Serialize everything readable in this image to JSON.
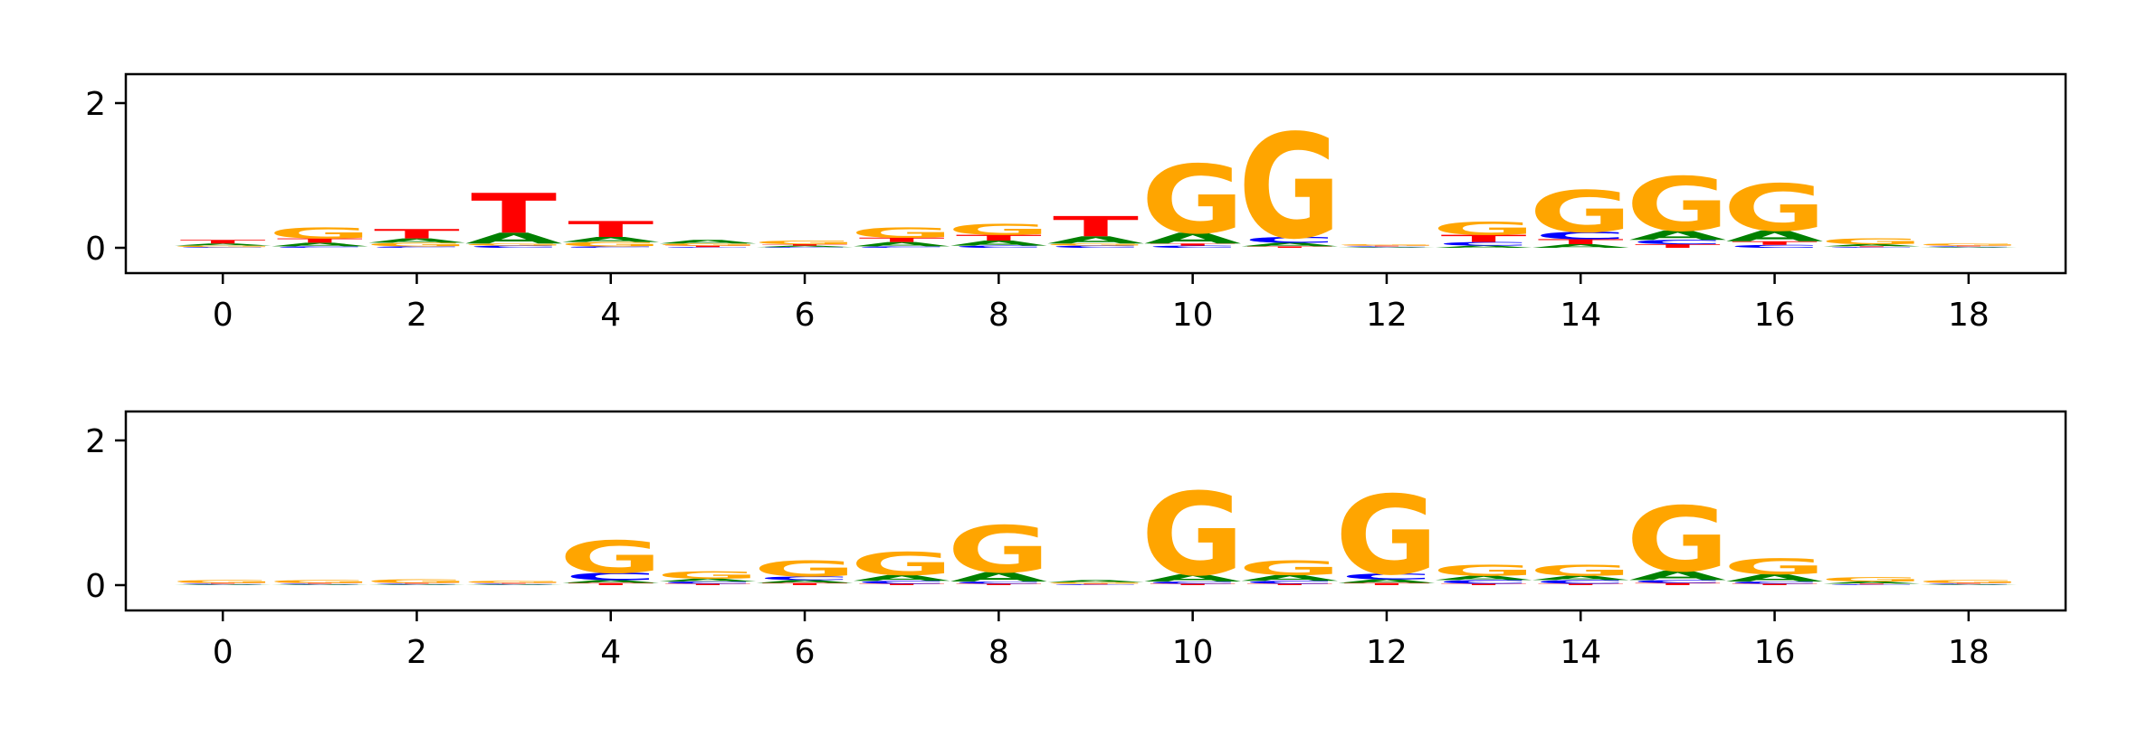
{
  "colors": {
    "A": "#008000",
    "C": "#0000ff",
    "G": "#ffa500",
    "T": "#ff0000",
    "axis": "#000000"
  },
  "chart_data": [
    {
      "type": "sequence-logo",
      "xlim": [
        -1,
        19
      ],
      "ylim": [
        -0.35,
        2.4
      ],
      "xticks": [
        0,
        2,
        4,
        6,
        8,
        10,
        12,
        14,
        16,
        18
      ],
      "yticks": [
        0,
        2
      ],
      "positions": [
        {
          "pos": 0,
          "A": 0.03,
          "C": 0.01,
          "G": 0.02,
          "T": 0.05
        },
        {
          "pos": 1,
          "A": 0.05,
          "C": 0.02,
          "G": 0.15,
          "T": 0.06
        },
        {
          "pos": 2,
          "A": 0.06,
          "C": 0.02,
          "G": 0.05,
          "T": 0.13
        },
        {
          "pos": 3,
          "A": 0.15,
          "C": 0.03,
          "G": 0.03,
          "T": 0.55
        },
        {
          "pos": 4,
          "A": 0.07,
          "C": 0.02,
          "G": 0.06,
          "T": 0.22
        },
        {
          "pos": 5,
          "A": 0.05,
          "C": 0.01,
          "G": 0.03,
          "T": 0.02
        },
        {
          "pos": 6,
          "A": 0.02,
          "C": 0.01,
          "G": 0.05,
          "T": 0.02
        },
        {
          "pos": 7,
          "A": 0.06,
          "C": 0.02,
          "G": 0.14,
          "T": 0.06
        },
        {
          "pos": 8,
          "A": 0.07,
          "C": 0.03,
          "G": 0.15,
          "T": 0.08
        },
        {
          "pos": 9,
          "A": 0.1,
          "C": 0.03,
          "G": 0.03,
          "T": 0.28
        },
        {
          "pos": 10,
          "A": 0.15,
          "C": 0.03,
          "G": 0.95,
          "T": 0.03
        },
        {
          "pos": 11,
          "A": 0.05,
          "C": 0.08,
          "G": 1.45,
          "T": 0.02
        },
        {
          "pos": 12,
          "A": 0.01,
          "C": 0.01,
          "G": 0.02,
          "T": 0.01
        },
        {
          "pos": 13,
          "A": 0.03,
          "C": 0.05,
          "G": 0.18,
          "T": 0.1
        },
        {
          "pos": 14,
          "A": 0.05,
          "C": 0.1,
          "G": 0.58,
          "T": 0.07
        },
        {
          "pos": 15,
          "A": 0.13,
          "C": 0.06,
          "G": 0.75,
          "T": 0.05
        },
        {
          "pos": 16,
          "A": 0.15,
          "C": 0.04,
          "G": 0.65,
          "T": 0.05
        },
        {
          "pos": 17,
          "A": 0.03,
          "C": 0.01,
          "G": 0.08,
          "T": 0.01
        },
        {
          "pos": 18,
          "A": 0.01,
          "C": 0.01,
          "G": 0.03,
          "T": 0.01
        }
      ]
    },
    {
      "type": "sequence-logo",
      "xlim": [
        -1,
        19
      ],
      "ylim": [
        -0.35,
        2.4
      ],
      "xticks": [
        0,
        2,
        4,
        6,
        8,
        10,
        12,
        14,
        16,
        18
      ],
      "yticks": [
        0,
        2
      ],
      "positions": [
        {
          "pos": 0,
          "A": 0.01,
          "C": 0.01,
          "G": 0.04,
          "T": 0.01
        },
        {
          "pos": 1,
          "A": 0.01,
          "C": 0.01,
          "G": 0.04,
          "T": 0.01
        },
        {
          "pos": 2,
          "A": 0.01,
          "C": 0.01,
          "G": 0.05,
          "T": 0.01
        },
        {
          "pos": 3,
          "A": 0.01,
          "C": 0.01,
          "G": 0.03,
          "T": 0.01
        },
        {
          "pos": 4,
          "A": 0.04,
          "C": 0.1,
          "G": 0.45,
          "T": 0.03
        },
        {
          "pos": 5,
          "A": 0.04,
          "C": 0.03,
          "G": 0.1,
          "T": 0.02
        },
        {
          "pos": 6,
          "A": 0.04,
          "C": 0.05,
          "G": 0.22,
          "T": 0.03
        },
        {
          "pos": 7,
          "A": 0.08,
          "C": 0.04,
          "G": 0.32,
          "T": 0.02
        },
        {
          "pos": 8,
          "A": 0.13,
          "C": 0.03,
          "G": 0.65,
          "T": 0.02
        },
        {
          "pos": 9,
          "A": 0.03,
          "C": 0.01,
          "G": 0.02,
          "T": 0.01
        },
        {
          "pos": 10,
          "A": 0.1,
          "C": 0.03,
          "G": 1.15,
          "T": 0.02
        },
        {
          "pos": 11,
          "A": 0.08,
          "C": 0.04,
          "G": 0.2,
          "T": 0.02
        },
        {
          "pos": 12,
          "A": 0.05,
          "C": 0.08,
          "G": 1.1,
          "T": 0.03
        },
        {
          "pos": 13,
          "A": 0.06,
          "C": 0.05,
          "G": 0.15,
          "T": 0.02
        },
        {
          "pos": 14,
          "A": 0.06,
          "C": 0.05,
          "G": 0.15,
          "T": 0.02
        },
        {
          "pos": 15,
          "A": 0.13,
          "C": 0.04,
          "G": 0.9,
          "T": 0.03
        },
        {
          "pos": 16,
          "A": 0.1,
          "C": 0.03,
          "G": 0.22,
          "T": 0.02
        },
        {
          "pos": 17,
          "A": 0.03,
          "C": 0.01,
          "G": 0.06,
          "T": 0.01
        },
        {
          "pos": 18,
          "A": 0.01,
          "C": 0.01,
          "G": 0.04,
          "T": 0.01
        }
      ]
    }
  ]
}
